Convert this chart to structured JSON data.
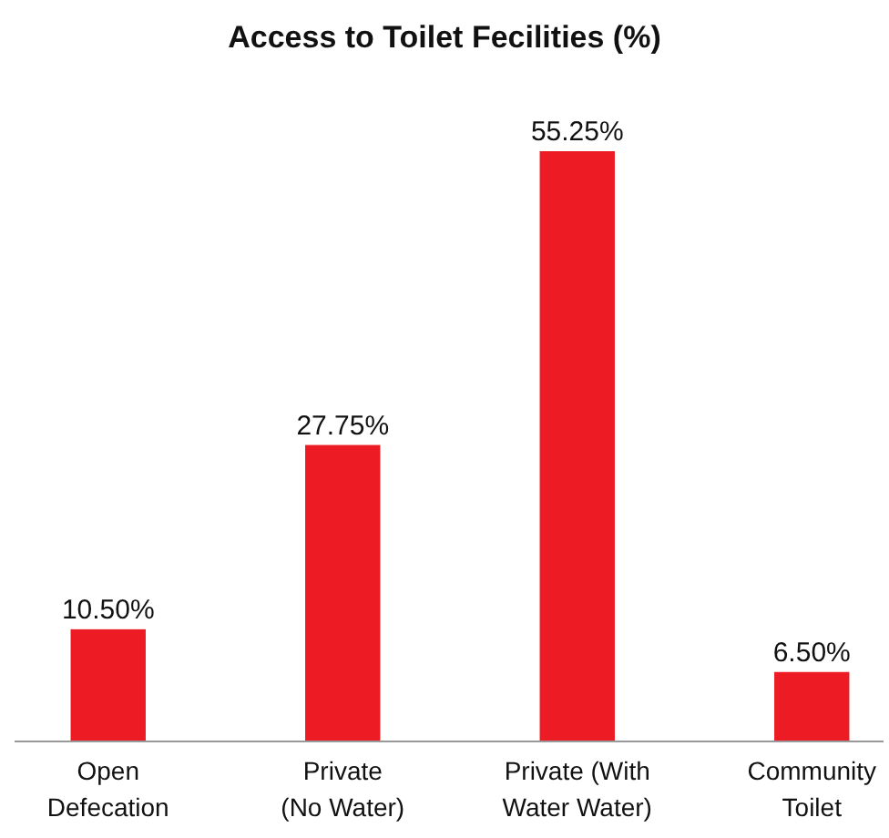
{
  "chart_data": {
    "type": "bar",
    "title": "Access to Toilet Fecilities (%)",
    "categories": [
      "Open Defecation",
      "Private (No Water)",
      "Private (With Water Water)",
      "Community Toilet"
    ],
    "values": [
      10.5,
      27.75,
      55.25,
      6.5
    ],
    "value_labels": [
      "10.50%",
      "27.75%",
      "55.25%",
      "6.50%"
    ],
    "color": "#ed1c24",
    "relative": false
  }
}
